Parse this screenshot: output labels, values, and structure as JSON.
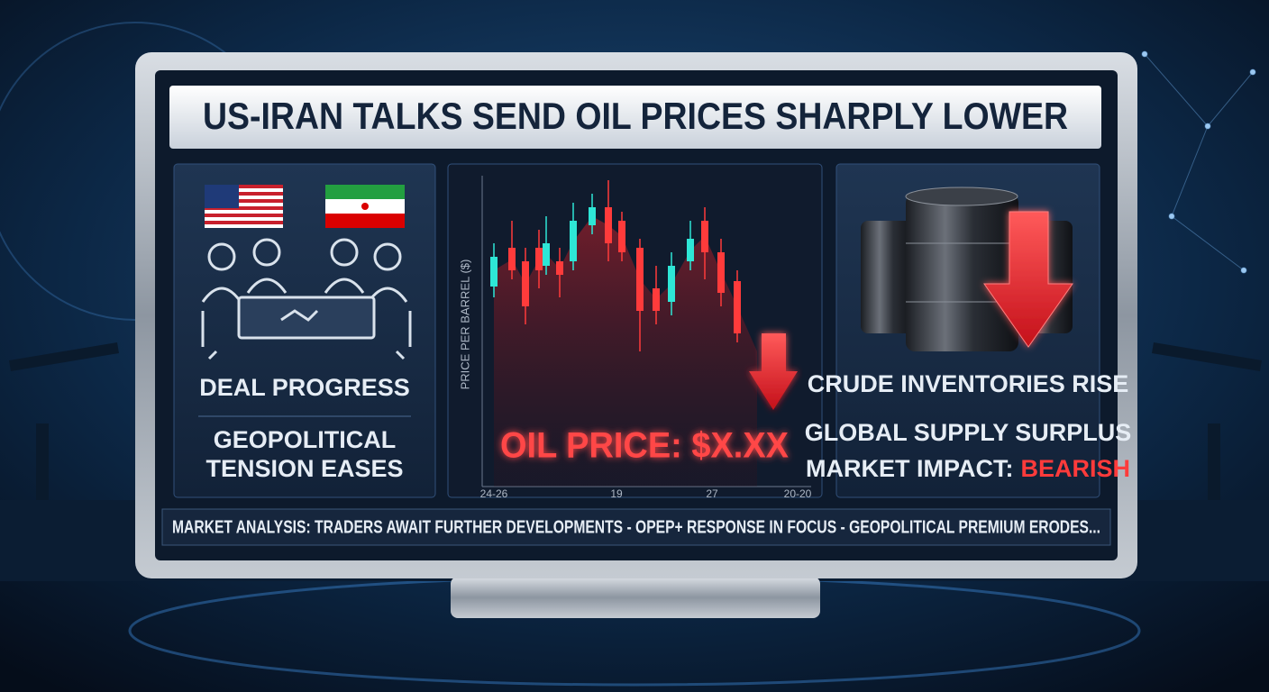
{
  "headline": "US-IRAN TALKS SEND OIL PRICES SHARPLY LOWER",
  "left_panel": {
    "status": "DEAL PROGRESS",
    "note": [
      "GEOPOLITICAL",
      "TENSION EASES"
    ]
  },
  "chart_panel": {
    "y_axis_label": "PRICE PER BARREL ($)",
    "price_label": "OIL PRICE: $X.XX",
    "x_labels": [
      "24-26",
      "19",
      "27",
      "20-20"
    ]
  },
  "right_panel": {
    "lines": [
      "CRUDE INVENTORIES RISE",
      "GLOBAL SUPPLY SURPLUS"
    ],
    "impact_label": "MARKET IMPACT:",
    "impact_value": "BEARISH"
  },
  "ticker": "MARKET ANALYSIS: TRADERS AWAIT FURTHER DEVELOPMENTS - OPEP+ RESPONSE IN FOCUS - GEOPOLITICAL PREMIUM ERODES..."
}
